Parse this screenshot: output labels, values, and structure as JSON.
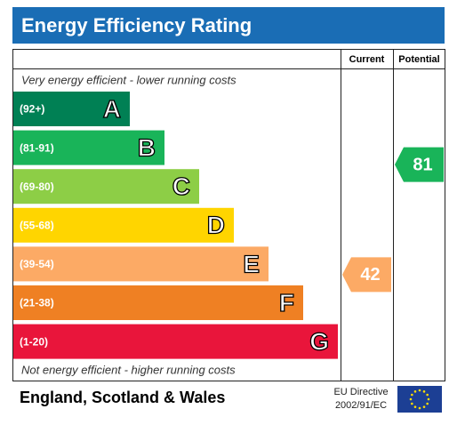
{
  "title": "Energy Efficiency Rating",
  "columns": {
    "current": "Current",
    "potential": "Potential"
  },
  "top_note": "Very energy efficient - lower running costs",
  "bottom_note": "Not energy efficient - higher running costs",
  "bands": [
    {
      "range": "(92+)",
      "letter": "A",
      "color": "#008054"
    },
    {
      "range": "(81-91)",
      "letter": "B",
      "color": "#19b459"
    },
    {
      "range": "(69-80)",
      "letter": "C",
      "color": "#8dce46"
    },
    {
      "range": "(55-68)",
      "letter": "D",
      "color": "#ffd500"
    },
    {
      "range": "(39-54)",
      "letter": "E",
      "color": "#fcaa65"
    },
    {
      "range": "(21-38)",
      "letter": "F",
      "color": "#ef8023"
    },
    {
      "range": "(1-20)",
      "letter": "G",
      "color": "#e9153b"
    }
  ],
  "current": 42,
  "potential": 81,
  "footer": {
    "region": "England, Scotland & Wales",
    "directive": [
      "EU Directive",
      "2002/91/EC"
    ]
  }
}
